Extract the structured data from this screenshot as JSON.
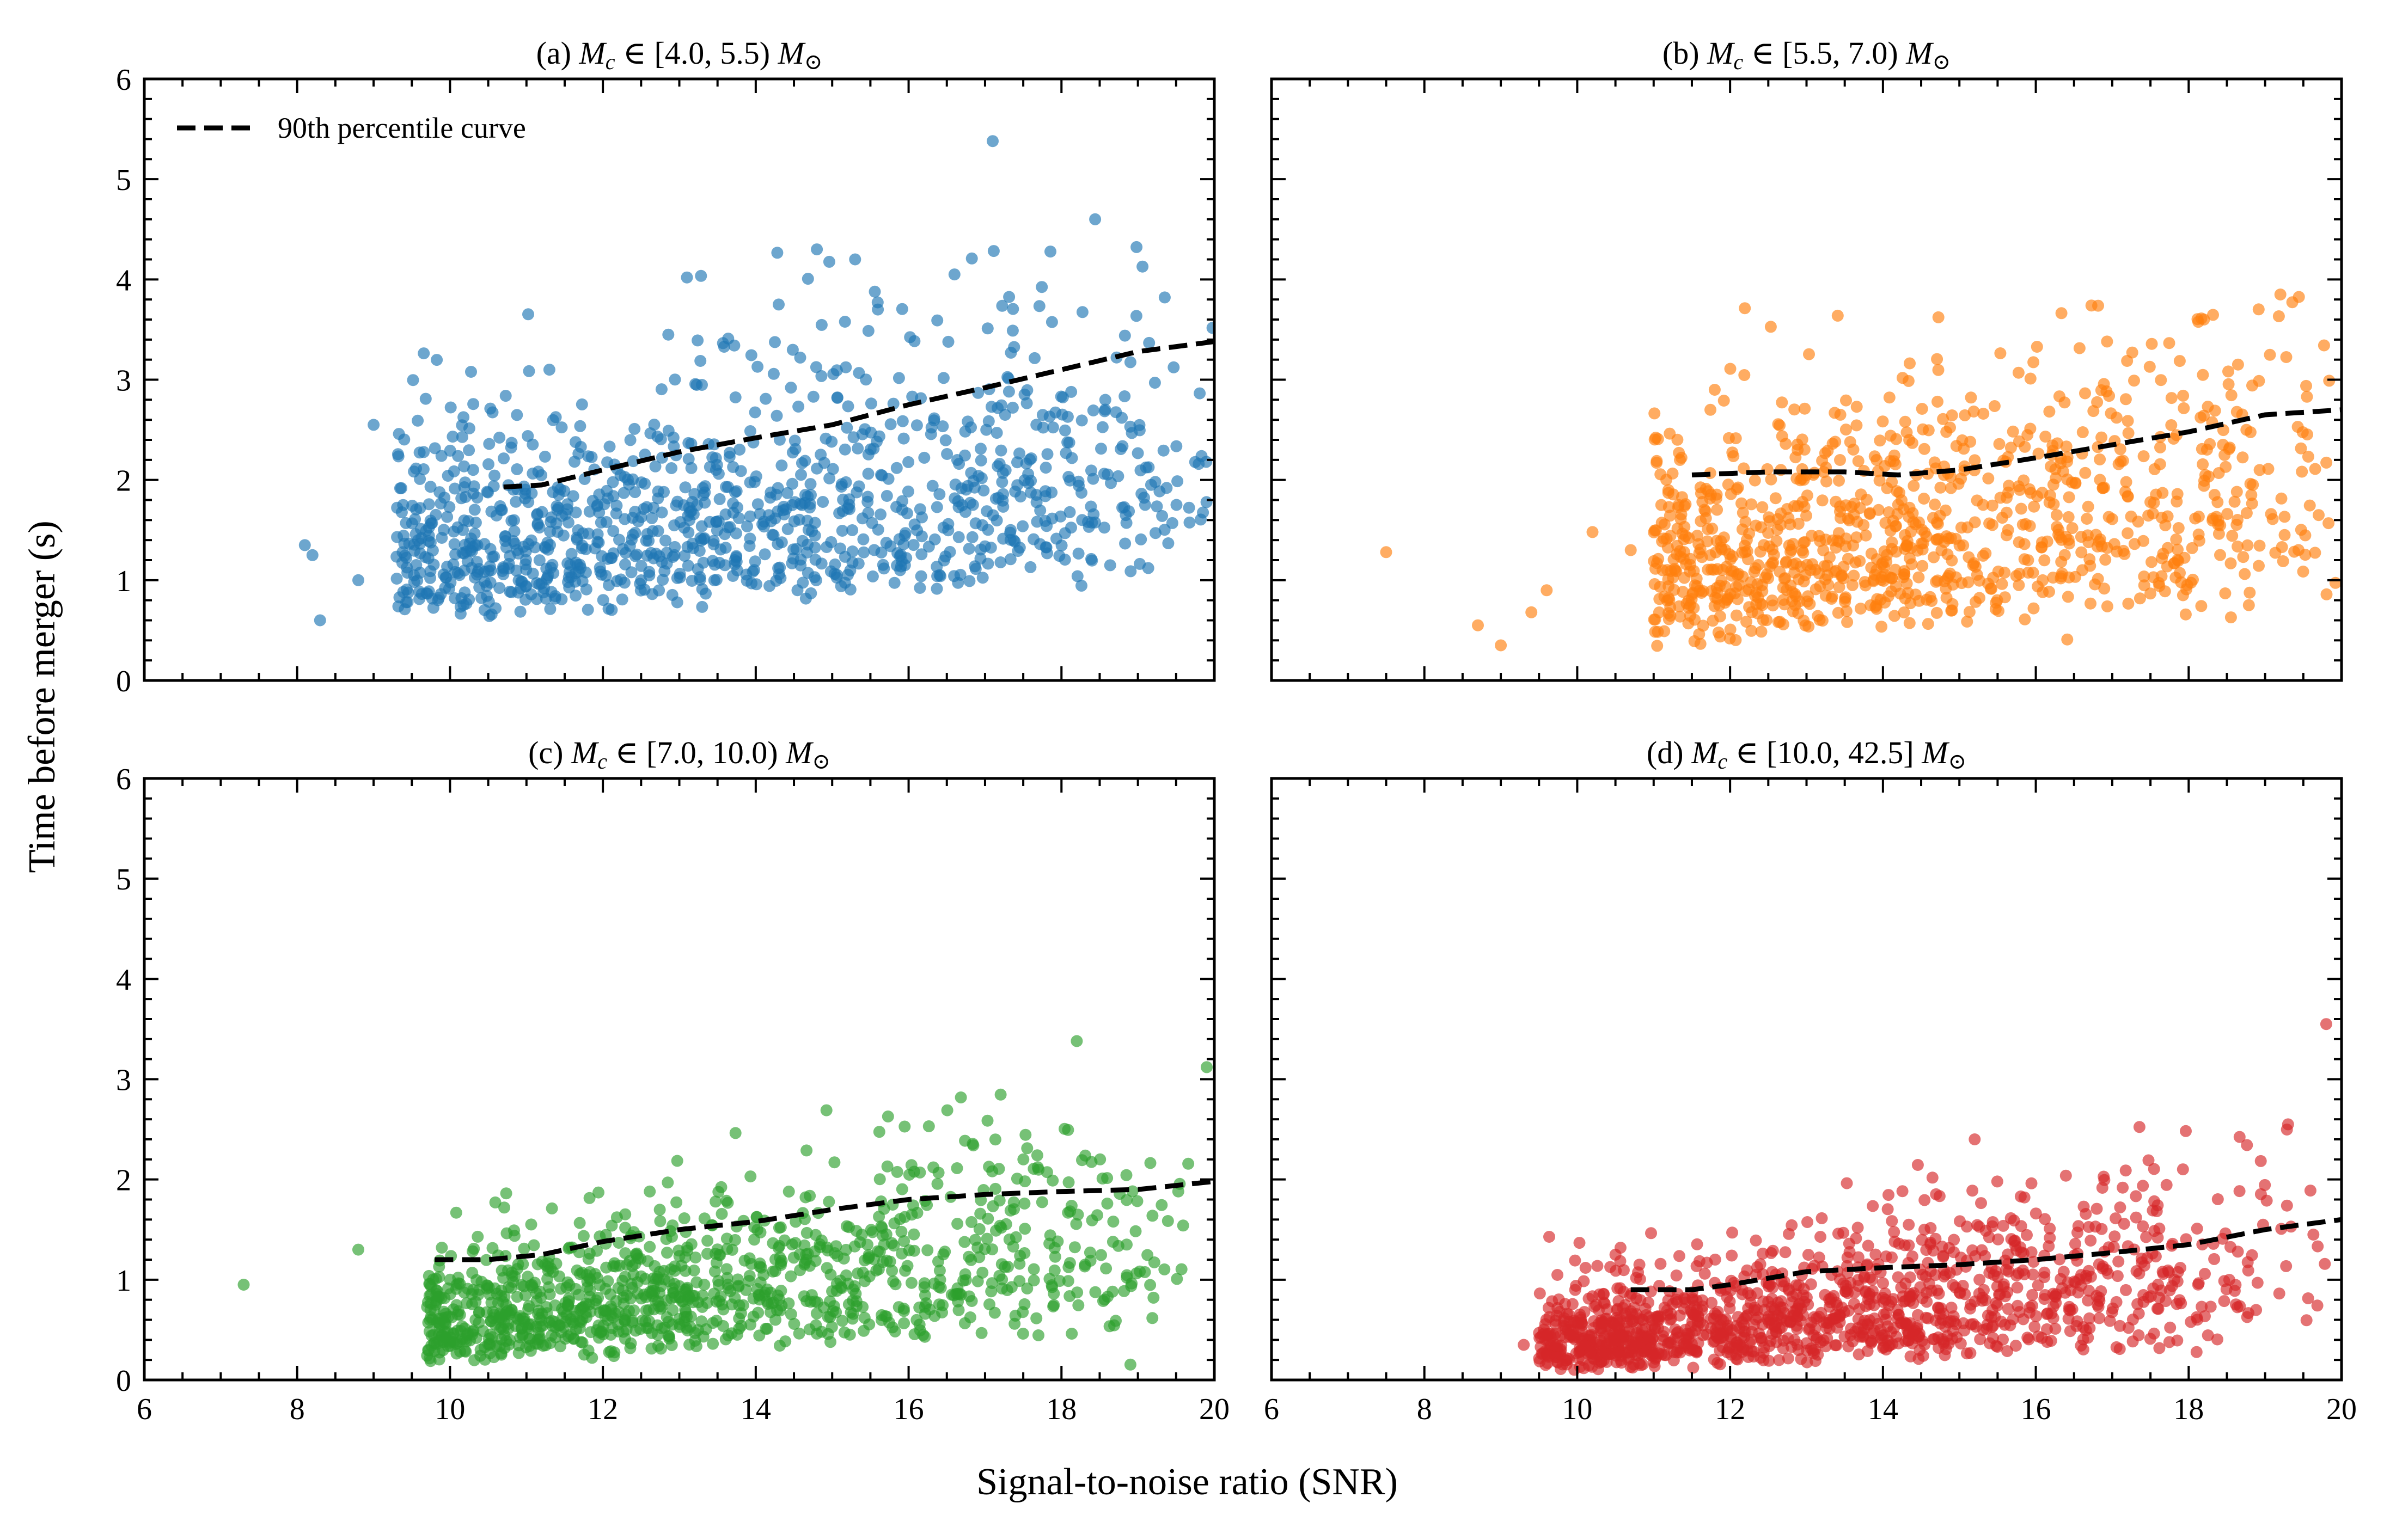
{
  "figure": {
    "xlabel": "Signal-to-noise ratio (SNR)",
    "ylabel": "Time before merger (s)",
    "legend_label": "90th percentile curve"
  },
  "chart_data": [
    {
      "type": "scatter",
      "title_prefix": "(a)",
      "title_range": "[4.0, 5.5)",
      "color": "#1f77b4",
      "xlim": [
        6,
        20
      ],
      "ylim": [
        0,
        6
      ],
      "xticks": [
        6,
        8,
        10,
        12,
        14,
        16,
        18,
        20
      ],
      "yticks": [
        0,
        1,
        2,
        3,
        4,
        5,
        6
      ],
      "show_xticklabels": false,
      "show_yticklabels": true,
      "legend": "top-left",
      "percentile_curve": {
        "x": [
          10.7,
          11.2,
          12.0,
          13.0,
          14.0,
          15.0,
          16.0,
          17.0,
          18.0,
          19.0,
          20.0
        ],
        "y": [
          1.93,
          1.95,
          2.1,
          2.28,
          2.42,
          2.55,
          2.75,
          2.92,
          3.1,
          3.28,
          3.38
        ]
      },
      "outliers": [
        [
          8.1,
          1.35
        ],
        [
          8.2,
          1.25
        ],
        [
          8.3,
          0.6
        ],
        [
          8.8,
          1.0
        ],
        [
          9.0,
          2.55
        ],
        [
          11.3,
          3.1
        ],
        [
          13.1,
          4.02
        ],
        [
          17.1,
          5.38
        ],
        [
          14.8,
          4.3
        ],
        [
          15.3,
          4.2
        ],
        [
          14.3,
          3.75
        ],
        [
          16.6,
          4.05
        ]
      ],
      "scatter": {
        "count": 1100,
        "x_min": 9.3,
        "x_max": 20.0,
        "skew": 0.7,
        "y_base": 0.55,
        "y_slope": 0.04,
        "y_spread": 1.15,
        "y_slope_spread": 0.055,
        "y_cap": 4.7,
        "y_floor": 0.3,
        "seed": 11
      }
    },
    {
      "type": "scatter",
      "title_prefix": "(b)",
      "title_range": "[5.5, 7.0)",
      "color": "#ff7f0e",
      "xlim": [
        6,
        20
      ],
      "ylim": [
        0,
        6
      ],
      "xticks": [
        6,
        8,
        10,
        12,
        14,
        16,
        18,
        20
      ],
      "yticks": [
        0,
        1,
        2,
        3,
        4,
        5,
        6
      ],
      "show_xticklabels": false,
      "show_yticklabels": false,
      "percentile_curve": {
        "x": [
          11.5,
          12.5,
          13.5,
          14.2,
          15.0,
          16.0,
          17.0,
          18.0,
          19.0,
          20.0
        ],
        "y": [
          2.05,
          2.08,
          2.08,
          2.05,
          2.1,
          2.22,
          2.35,
          2.48,
          2.65,
          2.7
        ]
      },
      "outliers": [
        [
          7.5,
          1.28
        ],
        [
          8.7,
          0.55
        ],
        [
          9.0,
          0.35
        ],
        [
          9.4,
          0.68
        ],
        [
          9.6,
          0.9
        ],
        [
          10.2,
          1.48
        ],
        [
          10.7,
          1.3
        ],
        [
          11.1,
          1.75
        ],
        [
          19.2,
          3.85
        ],
        [
          18.2,
          3.6
        ]
      ],
      "scatter": {
        "count": 1000,
        "x_min": 11.0,
        "x_max": 20.0,
        "skew": 0.65,
        "y_base": 0.25,
        "y_slope": 0.05,
        "y_spread": 1.1,
        "y_slope_spread": 0.085,
        "y_cap": 3.85,
        "y_floor": 0.25,
        "seed": 22
      }
    },
    {
      "type": "scatter",
      "title_prefix": "(c)",
      "title_range": "[7.0, 10.0)",
      "color": "#2ca02c",
      "xlim": [
        6,
        20
      ],
      "ylim": [
        0,
        6
      ],
      "xticks": [
        6,
        8,
        10,
        12,
        14,
        16,
        18,
        20
      ],
      "yticks": [
        0,
        1,
        2,
        3,
        4,
        5,
        6
      ],
      "show_xticklabels": true,
      "show_yticklabels": true,
      "percentile_curve": {
        "x": [
          9.8,
          10.5,
          11.2,
          12.0,
          13.0,
          14.0,
          15.0,
          16.0,
          17.0,
          18.0,
          19.0,
          20.0
        ],
        "y": [
          1.2,
          1.2,
          1.25,
          1.38,
          1.5,
          1.58,
          1.7,
          1.8,
          1.85,
          1.88,
          1.9,
          1.98
        ]
      },
      "outliers": [
        [
          7.3,
          0.95
        ],
        [
          8.8,
          1.3
        ],
        [
          18.2,
          3.38
        ],
        [
          19.9,
          3.12
        ]
      ],
      "scatter": {
        "count": 1100,
        "x_min": 9.7,
        "x_max": 20.0,
        "skew": 0.6,
        "y_base": 0.15,
        "y_slope": 0.035,
        "y_spread": 0.6,
        "y_slope_spread": 0.09,
        "y_cap": 3.1,
        "y_floor": 0.15,
        "seed": 33
      }
    },
    {
      "type": "scatter",
      "title_prefix": "(d)",
      "title_range": "[10.0, 42.5]",
      "color": "#d62728",
      "xlim": [
        6,
        20
      ],
      "ylim": [
        0,
        6
      ],
      "xticks": [
        6,
        8,
        10,
        12,
        14,
        16,
        18,
        20
      ],
      "yticks": [
        0,
        1,
        2,
        3,
        4,
        5,
        6
      ],
      "show_xticklabels": true,
      "show_yticklabels": false,
      "percentile_curve": {
        "x": [
          10.7,
          11.5,
          12.0,
          13.0,
          14.0,
          15.0,
          16.0,
          17.0,
          18.0,
          19.0,
          20.0
        ],
        "y": [
          0.9,
          0.9,
          0.95,
          1.08,
          1.12,
          1.15,
          1.2,
          1.27,
          1.35,
          1.5,
          1.6
        ]
      },
      "outliers": [
        [
          9.3,
          0.35
        ],
        [
          9.6,
          0.45
        ],
        [
          10.5,
          1.25
        ],
        [
          15.2,
          2.4
        ],
        [
          19.8,
          3.55
        ],
        [
          19.3,
          2.55
        ]
      ],
      "scatter": {
        "count": 1300,
        "x_min": 9.5,
        "x_max": 20.0,
        "skew": 0.55,
        "y_base": 0.08,
        "y_slope": 0.02,
        "y_spread": 0.45,
        "y_slope_spread": 0.1,
        "y_cap": 2.6,
        "y_floor": 0.05,
        "seed": 44
      }
    }
  ]
}
